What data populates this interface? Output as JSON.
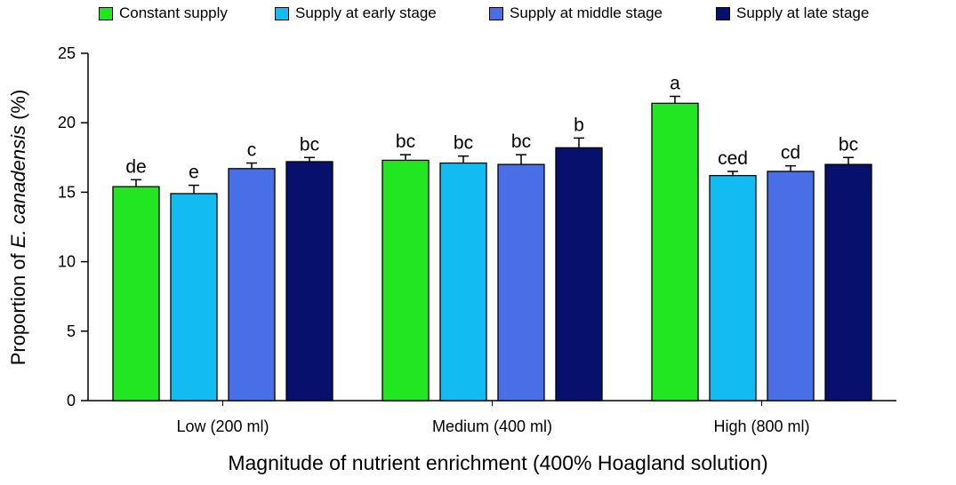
{
  "chart_data": {
    "type": "bar",
    "categories": [
      "Low (200 ml)",
      "Medium (400 ml)",
      "High (800 ml)"
    ],
    "series": [
      {
        "name": "Constant supply",
        "color": "#22e622",
        "values": [
          15.4,
          17.3,
          21.4
        ],
        "errors": [
          0.5,
          0.4,
          0.5
        ],
        "letters": [
          "de",
          "bc",
          "a"
        ]
      },
      {
        "name": "Supply at early stage",
        "color": "#12bcf2",
        "values": [
          14.9,
          17.1,
          16.2
        ],
        "errors": [
          0.6,
          0.5,
          0.3
        ],
        "letters": [
          "e",
          "bc",
          "ced"
        ]
      },
      {
        "name": "Supply at middle stage",
        "color": "#4a6ee6",
        "values": [
          16.7,
          17.0,
          16.5
        ],
        "errors": [
          0.4,
          0.7,
          0.4
        ],
        "letters": [
          "c",
          "bc",
          "cd"
        ]
      },
      {
        "name": "Supply at late stage",
        "color": "#08106e",
        "values": [
          17.2,
          18.2,
          17.0
        ],
        "errors": [
          0.3,
          0.7,
          0.5
        ],
        "letters": [
          "bc",
          "b",
          "bc"
        ]
      }
    ],
    "ylabel_prefix": "Proportion of ",
    "ylabel_species": "E. canadensis",
    "ylabel_suffix": " (%)",
    "xlabel": "Magnitude of nutrient enrichment (400% Hoagland solution)",
    "ylim": [
      0,
      25
    ],
    "yticks": [
      0,
      5,
      10,
      15,
      20,
      25
    ],
    "grid": false,
    "legend_position": "top"
  }
}
